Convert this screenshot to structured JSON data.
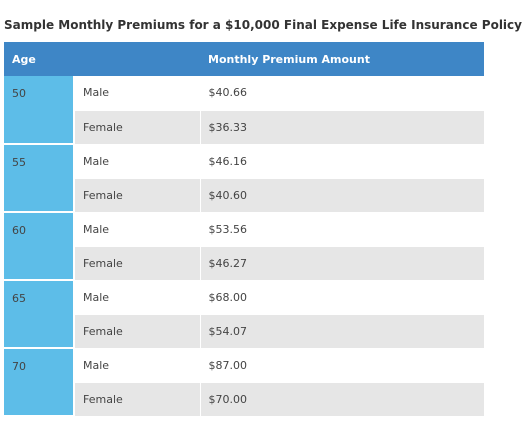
{
  "title": "Sample Monthly Premiums for a $10,000 Final Expense Life Insurance Policy",
  "table": {
    "headers": [
      "Age",
      "",
      "Monthly Premium Amount"
    ],
    "groups": [
      {
        "age": "50",
        "rows": [
          {
            "sex": "Male",
            "amount": "$40.66"
          },
          {
            "sex": "Female",
            "amount": "$36.33"
          }
        ]
      },
      {
        "age": "55",
        "rows": [
          {
            "sex": "Male",
            "amount": "$46.16"
          },
          {
            "sex": "Female",
            "amount": "$40.60"
          }
        ]
      },
      {
        "age": "60",
        "rows": [
          {
            "sex": "Male",
            "amount": "$53.56"
          },
          {
            "sex": "Female",
            "amount": "$46.27"
          }
        ]
      },
      {
        "age": "65",
        "rows": [
          {
            "sex": "Male",
            "amount": "$68.00"
          },
          {
            "sex": "Female",
            "amount": "$54.07"
          }
        ]
      },
      {
        "age": "70",
        "rows": [
          {
            "sex": "Male",
            "amount": "$87.00"
          },
          {
            "sex": "Female",
            "amount": "$70.00"
          }
        ]
      }
    ]
  },
  "colors": {
    "header_bg": "#3e86c6",
    "age_bg": "#5dbde8",
    "stripe_bg": "#e6e6e6",
    "title_text": "#333333"
  }
}
